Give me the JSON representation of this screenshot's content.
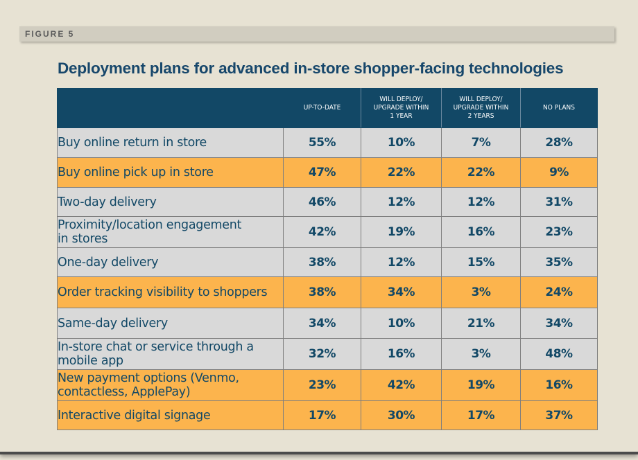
{
  "figure_label": "FIGURE 5",
  "chart_data": {
    "type": "table",
    "title": "Deployment plans for advanced in-store shopper-facing technologies",
    "columns": [
      "UP-TO-DATE",
      "WILL DEPLOY/ UPGRADE WITHIN 1 YEAR",
      "WILL DEPLOY/ UPGRADE WITHIN 2 YEARS",
      "NO PLANS"
    ],
    "row_colors": {
      "gray": "#d9d9d9",
      "orange": "#fcb44d",
      "header": "#124866"
    },
    "rows": [
      {
        "label": "Buy online return in store",
        "values": [
          "55%",
          "10%",
          "7%",
          "28%"
        ],
        "highlight": "gray"
      },
      {
        "label": "Buy online pick up in store",
        "values": [
          "47%",
          "22%",
          "22%",
          "9%"
        ],
        "highlight": "orange"
      },
      {
        "label": "Two-day delivery",
        "values": [
          "46%",
          "12%",
          "12%",
          "31%"
        ],
        "highlight": "gray"
      },
      {
        "label": "Proximity/location engagement in stores",
        "values": [
          "42%",
          "19%",
          "16%",
          "23%"
        ],
        "highlight": "gray"
      },
      {
        "label": "One-day delivery",
        "values": [
          "38%",
          "12%",
          "15%",
          "35%"
        ],
        "highlight": "gray"
      },
      {
        "label": "Order tracking visibility to shoppers",
        "values": [
          "38%",
          "34%",
          "3%",
          "24%"
        ],
        "highlight": "orange"
      },
      {
        "label": "Same-day delivery",
        "values": [
          "34%",
          "10%",
          "21%",
          "34%"
        ],
        "highlight": "gray"
      },
      {
        "label": "In-store chat or service through a mobile app",
        "values": [
          "32%",
          "16%",
          "3%",
          "48%"
        ],
        "highlight": "gray"
      },
      {
        "label": "New payment options (Venmo, contactless, ApplePay)",
        "values": [
          "23%",
          "42%",
          "19%",
          "16%"
        ],
        "highlight": "orange"
      },
      {
        "label": "Interactive digital signage",
        "values": [
          "17%",
          "30%",
          "17%",
          "37%"
        ],
        "highlight": "orange"
      }
    ]
  }
}
